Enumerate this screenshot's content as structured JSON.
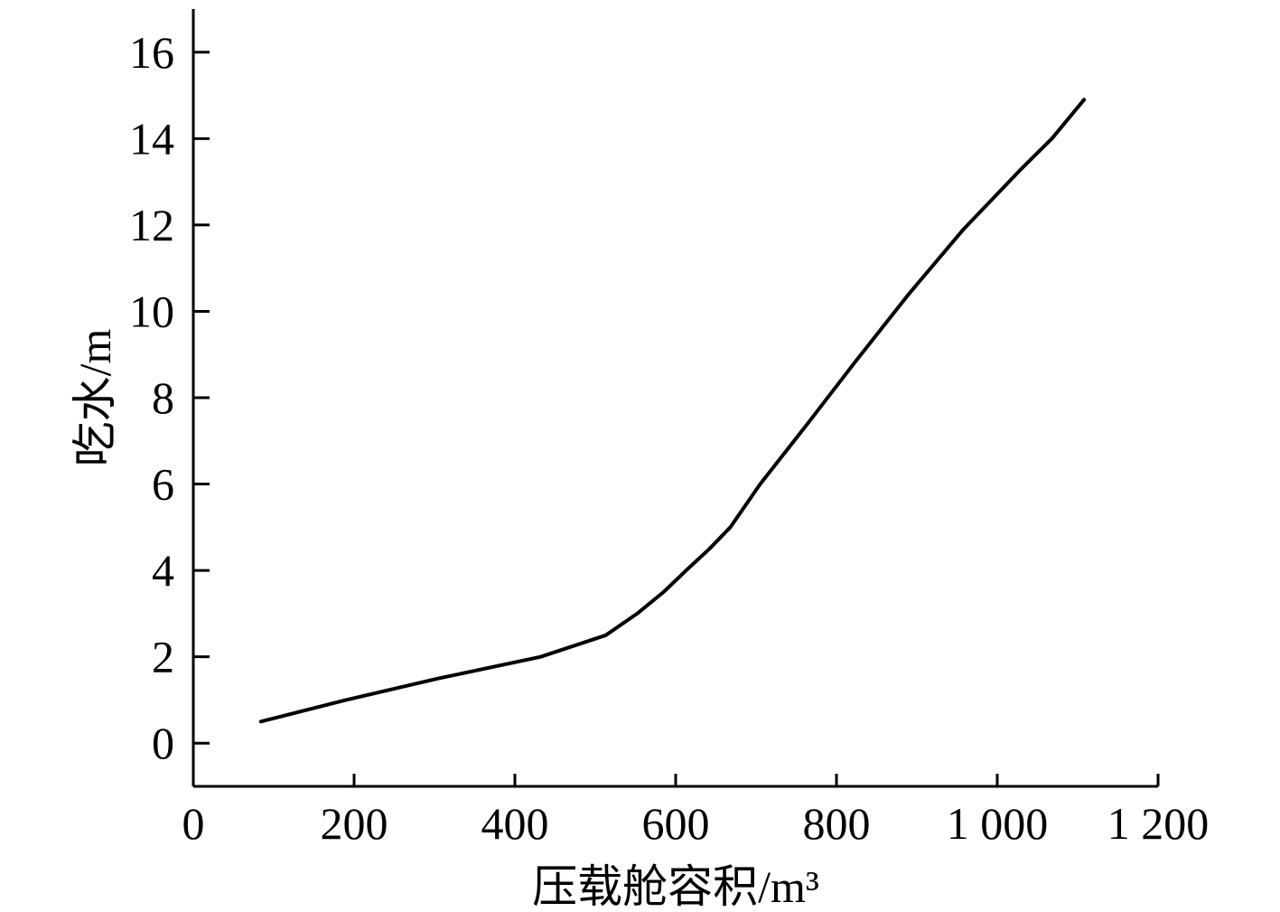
{
  "chart_data": {
    "type": "line",
    "title": "",
    "xlabel": "压载舱容积/m³",
    "ylabel": "吃水/m",
    "xlim": [
      0,
      1200
    ],
    "ylim": [
      -1,
      17
    ],
    "xticks": [
      0,
      200,
      400,
      600,
      800,
      1000,
      1200
    ],
    "xtick_labels": [
      "0",
      "200",
      "400",
      "600",
      "800",
      "1 000",
      "1 200"
    ],
    "yticks": [
      0,
      2,
      4,
      6,
      8,
      10,
      12,
      14,
      16
    ],
    "ytick_labels": [
      "0",
      "2",
      "4",
      "6",
      "8",
      "10",
      "12",
      "14",
      "16"
    ],
    "grid": false,
    "series": [
      {
        "x": [
          84,
          190,
          305,
          432,
          513,
          552,
          585,
          613,
          642,
          668,
          705,
          760,
          822,
          890,
          958,
          1030,
          1068,
          1108
        ],
        "y": [
          0.5,
          1.0,
          1.5,
          2.0,
          2.5,
          3.0,
          3.5,
          4.0,
          4.5,
          5.0,
          6.0,
          7.3,
          8.8,
          10.4,
          11.9,
          13.3,
          14.0,
          14.9
        ],
        "color": "#000000"
      }
    ]
  }
}
